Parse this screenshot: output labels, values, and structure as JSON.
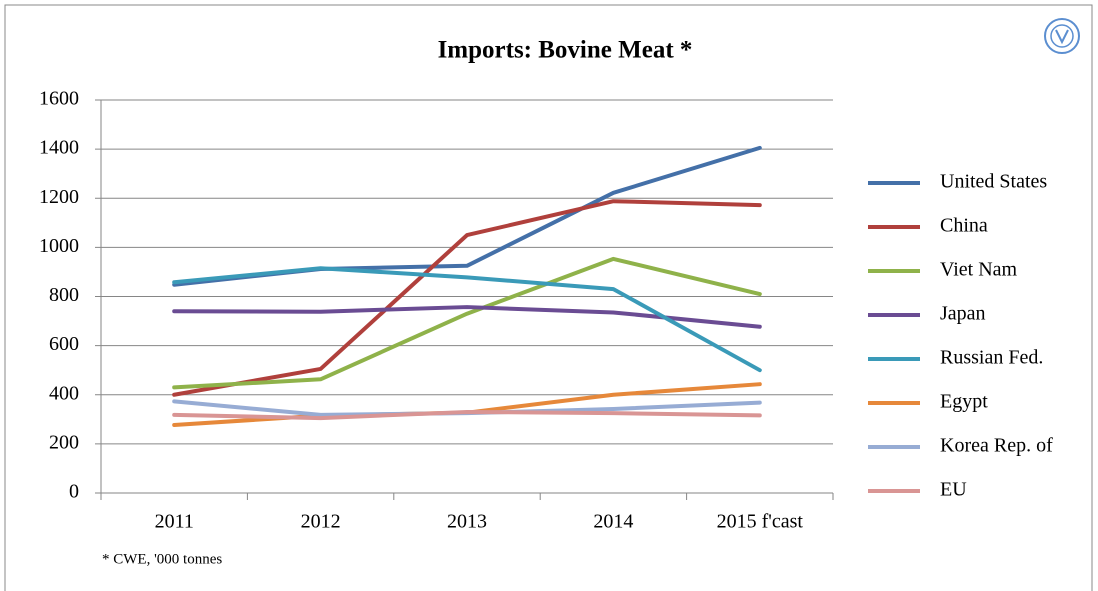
{
  "chart_data": {
    "type": "line",
    "title": "Imports: Bovine Meat *",
    "footnote": "* CWE, '000 tonnes",
    "categories": [
      "2011",
      "2012",
      "2013",
      "2014",
      "2015 f'cast"
    ],
    "ylim": [
      0,
      1600
    ],
    "yticks": [
      0,
      200,
      400,
      600,
      800,
      1000,
      1200,
      1400,
      1600
    ],
    "grid": true,
    "series": [
      {
        "name": "United States",
        "color": "#4470a8",
        "values": [
          848,
          912,
          925,
          1222,
          1405
        ]
      },
      {
        "name": "China",
        "color": "#b0403c",
        "values": [
          400,
          505,
          1050,
          1188,
          1172
        ]
      },
      {
        "name": "Viet Nam",
        "color": "#8fb24a",
        "values": [
          430,
          463,
          730,
          953,
          810
        ]
      },
      {
        "name": "Japan",
        "color": "#6a4c93",
        "values": [
          740,
          738,
          757,
          735,
          677
        ]
      },
      {
        "name": "Russian Fed.",
        "color": "#3a9ab8",
        "values": [
          858,
          915,
          878,
          830,
          500
        ]
      },
      {
        "name": "Egypt",
        "color": "#e6883a",
        "values": [
          277,
          315,
          327,
          400,
          443
        ]
      },
      {
        "name": "Korea Rep. of",
        "color": "#97acd4",
        "values": [
          373,
          318,
          325,
          342,
          368
        ]
      },
      {
        "name": "EU",
        "color": "#d99594",
        "values": [
          318,
          305,
          330,
          325,
          316
        ]
      }
    ]
  }
}
